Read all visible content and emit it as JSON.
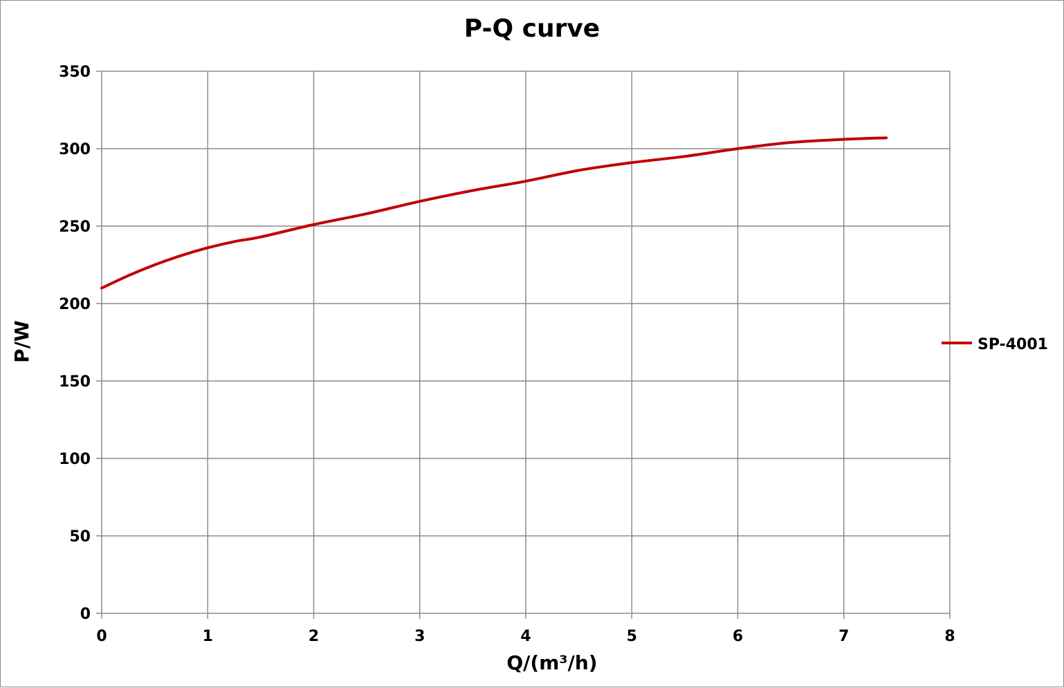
{
  "chart_data": {
    "type": "line",
    "title": "P-Q  curve",
    "xlabel": "Q/(m³/h)",
    "ylabel": "P/W",
    "xlim": [
      0,
      8
    ],
    "ylim": [
      0,
      350
    ],
    "x_ticks": [
      0,
      1,
      2,
      3,
      4,
      5,
      6,
      7,
      8
    ],
    "y_ticks": [
      0,
      50,
      100,
      150,
      200,
      250,
      300,
      350
    ],
    "grid": true,
    "legend_position": "right",
    "series": [
      {
        "name": "SP-4001",
        "color": "#c00000",
        "x": [
          0,
          0.25,
          0.5,
          0.75,
          1,
          1.25,
          1.5,
          2,
          2.5,
          3,
          3.5,
          4,
          4.5,
          5,
          5.5,
          6,
          6.5,
          7,
          7.4
        ],
        "y": [
          210,
          218,
          225,
          231,
          236,
          240,
          243,
          251,
          258,
          266,
          273,
          279,
          286,
          291,
          295,
          300,
          304,
          306,
          307
        ]
      }
    ]
  }
}
